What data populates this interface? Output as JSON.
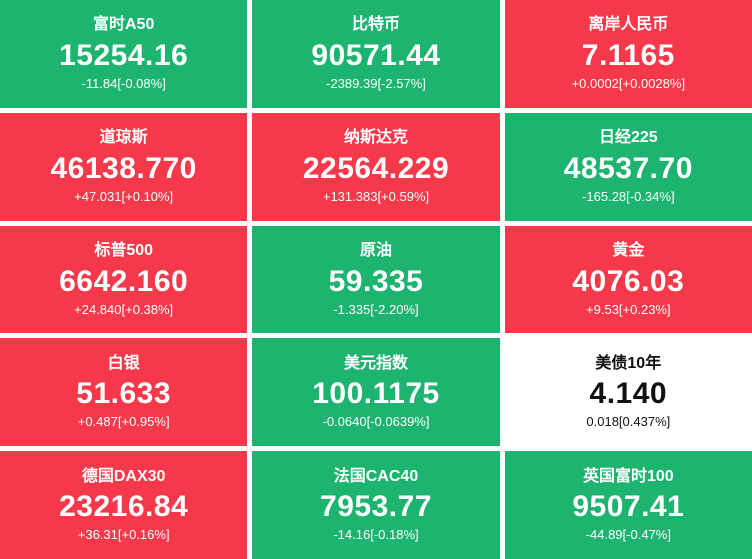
{
  "colors": {
    "up_background": "#f6394a",
    "down_background": "#1db470",
    "flat_background": "#ffffff",
    "tile_text": "#ffffff",
    "flat_text": "#111111"
  },
  "tiles": [
    {
      "name": "富时A50",
      "value": "15254.16",
      "change": "-11.84[-0.08%]",
      "state": "down"
    },
    {
      "name": "比特币",
      "value": "90571.44",
      "change": "-2389.39[-2.57%]",
      "state": "down"
    },
    {
      "name": "离岸人民币",
      "value": "7.1165",
      "change": "+0.0002[+0.0028%]",
      "state": "up"
    },
    {
      "name": "道琼斯",
      "value": "46138.770",
      "change": "+47.031[+0.10%]",
      "state": "up"
    },
    {
      "name": "纳斯达克",
      "value": "22564.229",
      "change": "+131.383[+0.59%]",
      "state": "up"
    },
    {
      "name": "日经225",
      "value": "48537.70",
      "change": "-165.28[-0.34%]",
      "state": "down"
    },
    {
      "name": "标普500",
      "value": "6642.160",
      "change": "+24.840[+0.38%]",
      "state": "up"
    },
    {
      "name": "原油",
      "value": "59.335",
      "change": "-1.335[-2.20%]",
      "state": "down"
    },
    {
      "name": "黄金",
      "value": "4076.03",
      "change": "+9.53[+0.23%]",
      "state": "up"
    },
    {
      "name": "白银",
      "value": "51.633",
      "change": "+0.487[+0.95%]",
      "state": "up"
    },
    {
      "name": "美元指数",
      "value": "100.1175",
      "change": "-0.0640[-0.0639%]",
      "state": "down"
    },
    {
      "name": "美债10年",
      "value": "4.140",
      "change": "0.018[0.437%]",
      "state": "flat"
    },
    {
      "name": "德国DAX30",
      "value": "23216.84",
      "change": "+36.31[+0.16%]",
      "state": "up"
    },
    {
      "name": "法国CAC40",
      "value": "7953.77",
      "change": "-14.16[-0.18%]",
      "state": "down"
    },
    {
      "name": "英国富时100",
      "value": "9507.41",
      "change": "-44.89[-0.47%]",
      "state": "down"
    }
  ]
}
